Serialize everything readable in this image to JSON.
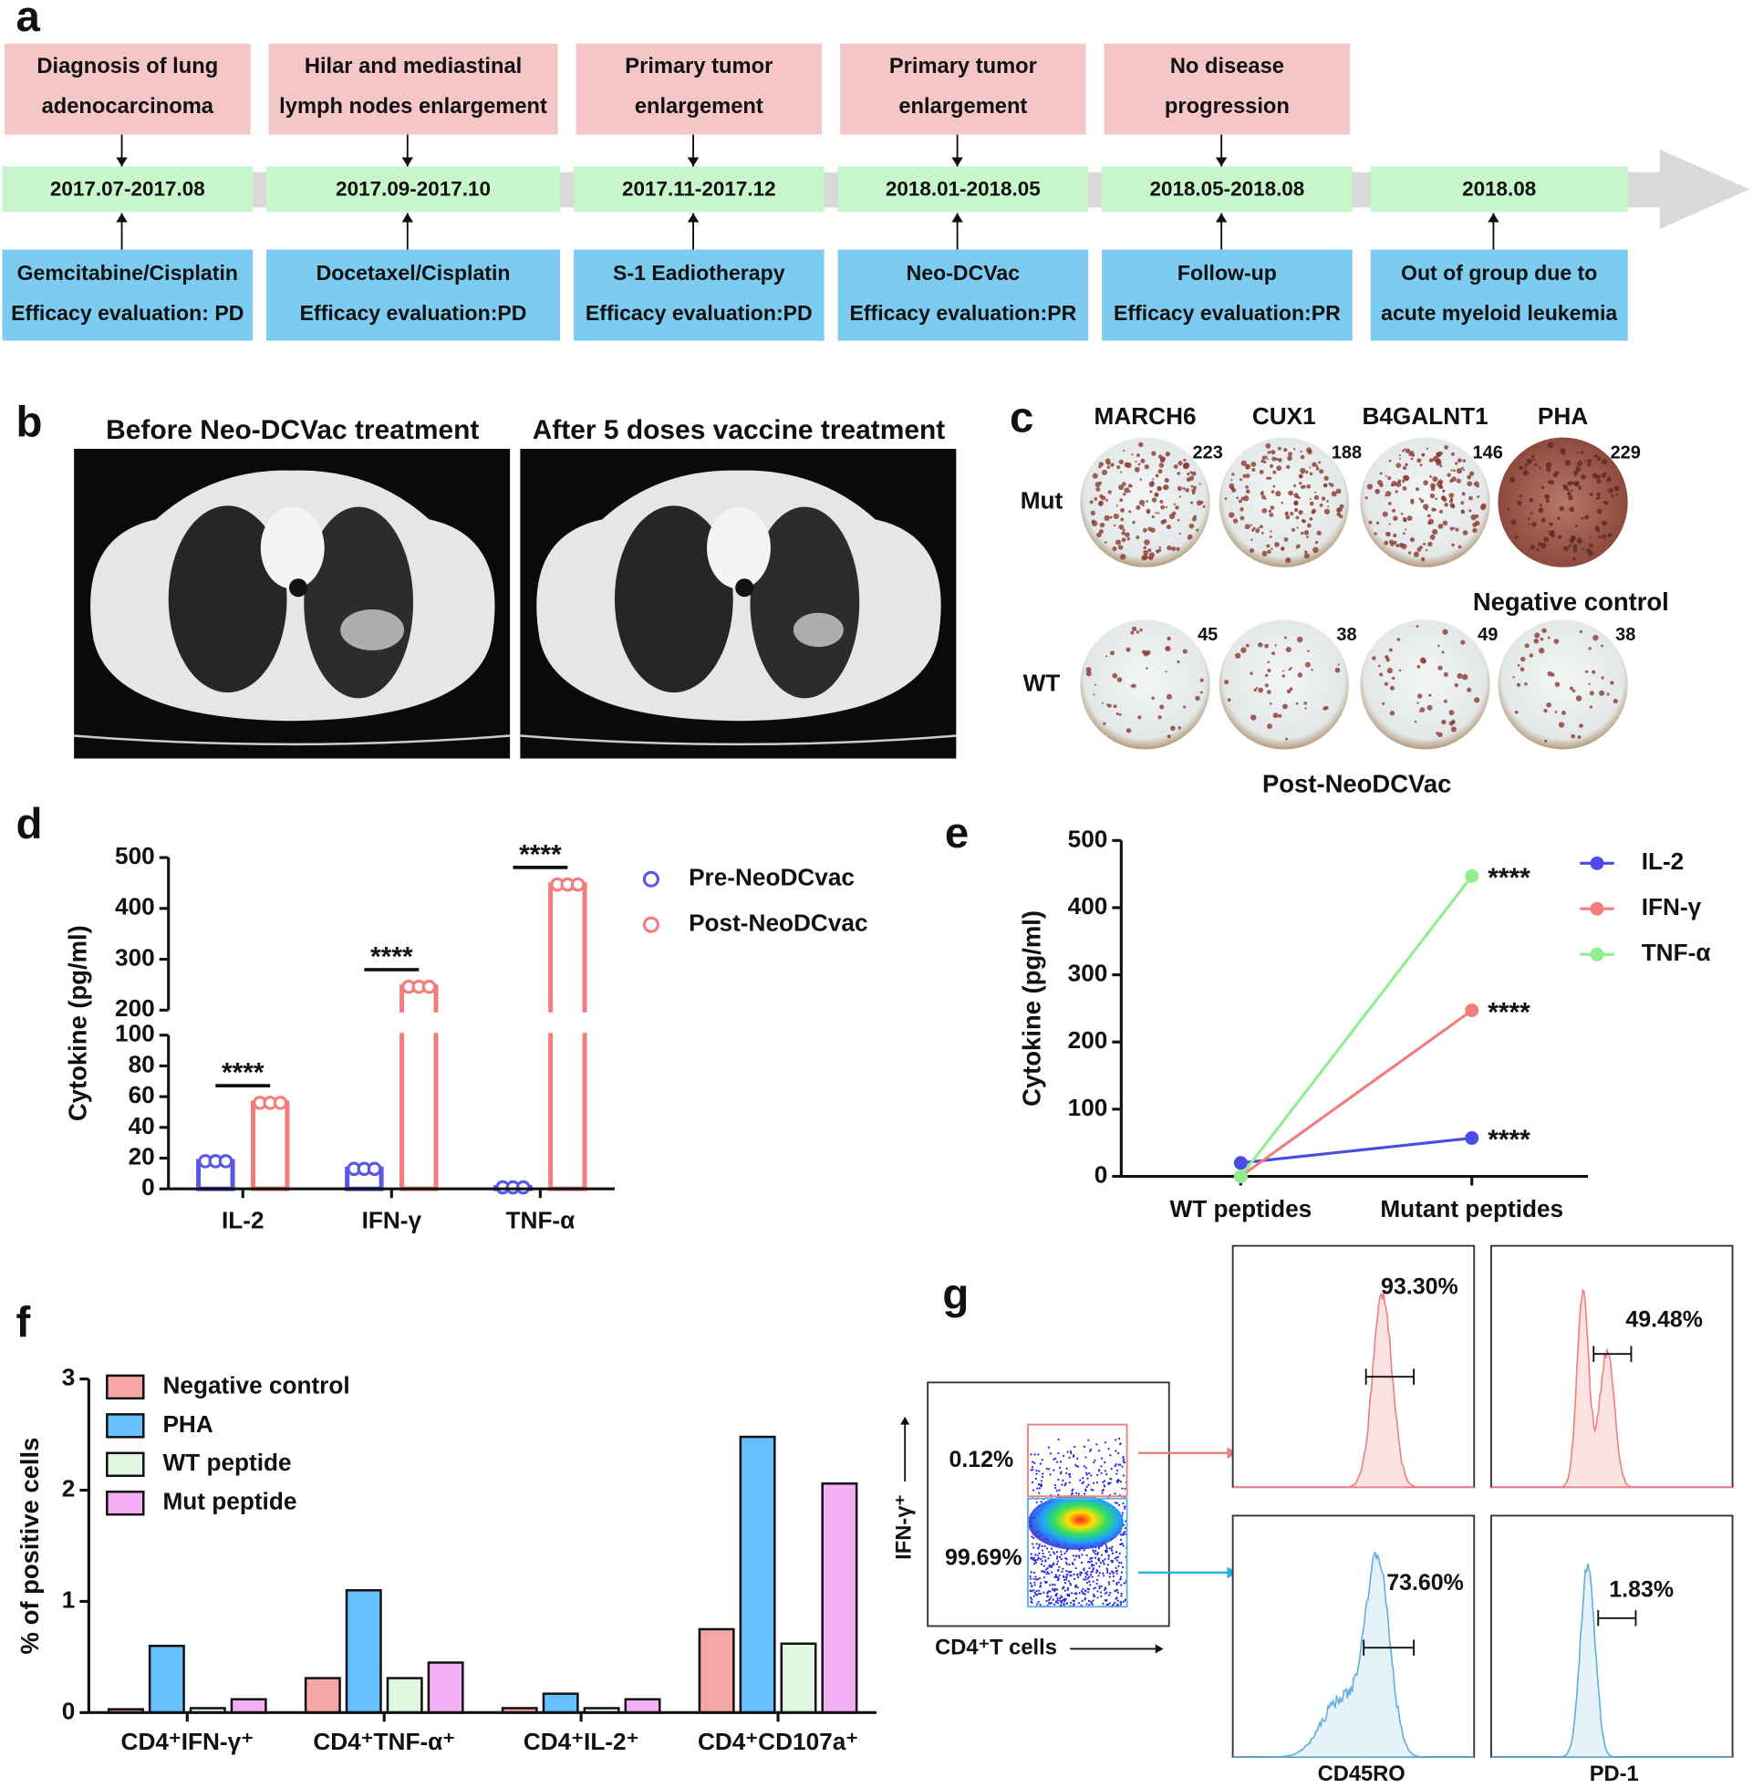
{
  "panel_labels": [
    "a",
    "b",
    "c",
    "d",
    "e",
    "f",
    "g"
  ],
  "timeline": {
    "stages": [
      {
        "event": [
          "Diagnosis of lung",
          "adenocarcinoma"
        ],
        "date": "2017.07-2017.08",
        "treatment": [
          "Gemcitabine/Cisplatin",
          "Efficacy evaluation: PD"
        ]
      },
      {
        "event": [
          "Hilar and mediastinal",
          "lymph nodes enlargement"
        ],
        "date": "2017.09-2017.10",
        "treatment": [
          "Docetaxel/Cisplatin",
          "Efficacy evaluation:PD"
        ]
      },
      {
        "event": [
          "Primary tumor",
          "enlargement"
        ],
        "date": "2017.11-2017.12",
        "treatment": [
          "S-1 Eadiotherapy",
          "Efficacy evaluation:PD"
        ]
      },
      {
        "event": [
          "Primary tumor",
          "enlargement"
        ],
        "date": "2018.01-2018.05",
        "treatment": [
          "Neo-DCVac",
          "Efficacy evaluation:PR"
        ]
      },
      {
        "event": [
          "No disease",
          "progression"
        ],
        "date": "2018.05-2018.08",
        "treatment": [
          "Follow-up",
          "Efficacy evaluation:PR"
        ]
      },
      {
        "date": "2018.08",
        "treatment": [
          "Out of group due to",
          "acute myeloid leukemia"
        ]
      }
    ]
  },
  "panel_b": {
    "titles": [
      "Before Neo-DCVac treatment",
      "After 5 doses vaccine treatment"
    ]
  },
  "panel_c": {
    "columns": [
      "MARCH6",
      "CUX1",
      "B4GALNT1",
      "PHA"
    ],
    "rows": [
      "Mut",
      "WT"
    ],
    "counts": [
      [
        223,
        188,
        146,
        229
      ],
      [
        45,
        38,
        49,
        38
      ]
    ],
    "notes": [
      "Negative control",
      "Post-NeoDCVac"
    ]
  },
  "chart_data": [
    {
      "type": "bar",
      "categories": [
        "IL-2",
        "IFN-γ",
        "TNF-α"
      ],
      "series": [
        {
          "name": "Pre-NeoDCvac",
          "color": "#5858e6",
          "values": [
            18,
            13,
            1
          ]
        },
        {
          "name": "Post-NeoDCvac",
          "color": "#f47c7c",
          "values": [
            56,
            246,
            447
          ]
        }
      ],
      "ylim": [
        0,
        500
      ],
      "ybreak": [
        100,
        200
      ],
      "yticks": [
        0,
        20,
        40,
        60,
        80,
        100,
        200,
        300,
        400,
        500
      ],
      "y_label": "Cytokine (pg/ml)",
      "annotations": [
        "****",
        "****",
        "****"
      ]
    },
    {
      "type": "line",
      "categories": [
        "WT peptides",
        "Mutant peptides"
      ],
      "series": [
        {
          "name": "IL-2",
          "color": "#4b4be6",
          "values": [
            20,
            57
          ]
        },
        {
          "name": "IFN-γ",
          "color": "#f47c7c",
          "values": [
            0,
            247
          ]
        },
        {
          "name": "TNF-α",
          "color": "#90ee90",
          "values": [
            0,
            447
          ]
        }
      ],
      "ylim": [
        0,
        500
      ],
      "yticks": [
        0,
        100,
        200,
        300,
        400,
        500
      ],
      "y_label": "Cytokine (pg/ml)",
      "annotations": [
        "****",
        "****",
        "****"
      ]
    },
    {
      "type": "bar",
      "categories": [
        "CD4⁺IFN-γ⁺",
        "CD4⁺TNF-α⁺",
        "CD4⁺IL-2⁺",
        "CD4⁺CD107a⁺"
      ],
      "series": [
        {
          "name": "Negative control",
          "color": "#f7a6a6",
          "values": [
            0.03,
            0.31,
            0.04,
            0.75
          ]
        },
        {
          "name": "PHA",
          "color": "#66bfff",
          "values": [
            0.6,
            1.1,
            0.17,
            2.48
          ]
        },
        {
          "name": "WT peptide",
          "color": "#dff7df",
          "values": [
            0.04,
            0.31,
            0.04,
            0.62
          ]
        },
        {
          "name": "Mut peptide",
          "color": "#f5b0f5",
          "values": [
            0.12,
            0.45,
            0.12,
            2.06
          ]
        }
      ],
      "ylim": [
        0,
        3
      ],
      "yticks": [
        0,
        1,
        2,
        3
      ],
      "y_label": "% of positive cells"
    }
  ],
  "panel_g": {
    "gate_labels": [
      "0.12%",
      "99.69%"
    ],
    "y_label": "IFN-γ⁺",
    "x_label": "CD4⁺T cells",
    "histogram_labels": [
      "93.30%",
      "49.48%",
      "73.60%",
      "1.83%"
    ],
    "histogram_axes": [
      "CD45RO",
      "PD-1"
    ]
  }
}
